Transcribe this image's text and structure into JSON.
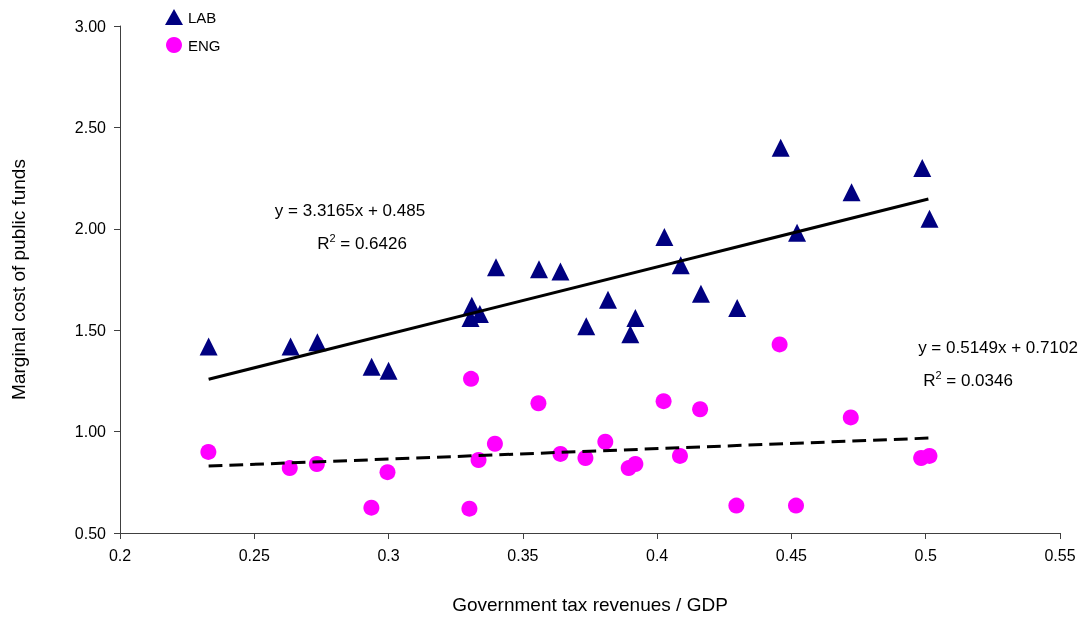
{
  "chart_data": {
    "type": "scatter",
    "xlabel": "Government tax revenues / GDP",
    "ylabel": "Marginal cost of public funds",
    "xlim": [
      0.2,
      0.55
    ],
    "xticks": [
      0.2,
      0.25,
      0.3,
      0.35,
      0.4,
      0.45,
      0.5,
      0.55
    ],
    "ylim": [
      0.5,
      3.0
    ],
    "yticks": [
      {
        "value": 0.5,
        "label": "0.50"
      },
      {
        "value": 1.0,
        "label": "1.00"
      },
      {
        "value": 1.5,
        "label": "1.50"
      },
      {
        "value": 2.0,
        "label": "2.00"
      },
      {
        "value": 2.5,
        "label": "2.50"
      },
      {
        "value": 3.0,
        "label": "3.00"
      }
    ],
    "grid": false,
    "legend": "top left",
    "series": [
      {
        "name": "LAB",
        "color": "#000080",
        "marker": "triangle",
        "x": [
          0.233,
          0.2635,
          0.2735,
          0.2937,
          0.3,
          0.331,
          0.3305,
          0.334,
          0.34,
          0.356,
          0.364,
          0.3736,
          0.3817,
          0.3919,
          0.39,
          0.4027,
          0.4088,
          0.4163,
          0.4298,
          0.446,
          0.4521,
          0.4724,
          0.4987,
          0.5014
        ],
        "values": [
          1.42,
          1.42,
          1.44,
          1.32,
          1.3,
          1.62,
          1.56,
          1.58,
          1.81,
          1.8,
          1.79,
          1.52,
          1.65,
          1.56,
          1.48,
          1.96,
          1.82,
          1.68,
          1.61,
          2.4,
          1.98,
          2.18,
          2.3,
          2.05
        ]
      },
      {
        "name": "ENG",
        "color": "#ff00ff",
        "marker": "circle",
        "x": [
          0.2329,
          0.2632,
          0.2733,
          0.2936,
          0.2996,
          0.3307,
          0.3301,
          0.3335,
          0.3396,
          0.3558,
          0.364,
          0.3733,
          0.3807,
          0.3894,
          0.3919,
          0.4024,
          0.416,
          0.4085,
          0.4295,
          0.4456,
          0.4517,
          0.4721,
          0.4983,
          0.5014
        ],
        "values": [
          0.9,
          0.82,
          0.84,
          0.625,
          0.8,
          1.26,
          0.62,
          0.86,
          0.94,
          1.14,
          0.89,
          0.87,
          0.95,
          0.82,
          0.84,
          1.15,
          1.11,
          0.88,
          0.635,
          1.43,
          0.635,
          1.07,
          0.87,
          0.88
        ]
      },
      {
        "type": "line",
        "color": "#000000",
        "line_style": "solid",
        "x": [
          0.233,
          0.501
        ],
        "values": [
          1.258,
          2.147
        ]
      },
      {
        "type": "line",
        "color": "#000000",
        "line_style": "dashed",
        "x": [
          0.233,
          0.501
        ],
        "values": [
          0.83,
          0.968
        ]
      }
    ],
    "annotations": [
      "y = 3.3165x + 0.485",
      "R$^{2}$ = 0.6426",
      "y = 0.5149x + 0.7102",
      "R$^{2}$ = 0.0346"
    ]
  }
}
